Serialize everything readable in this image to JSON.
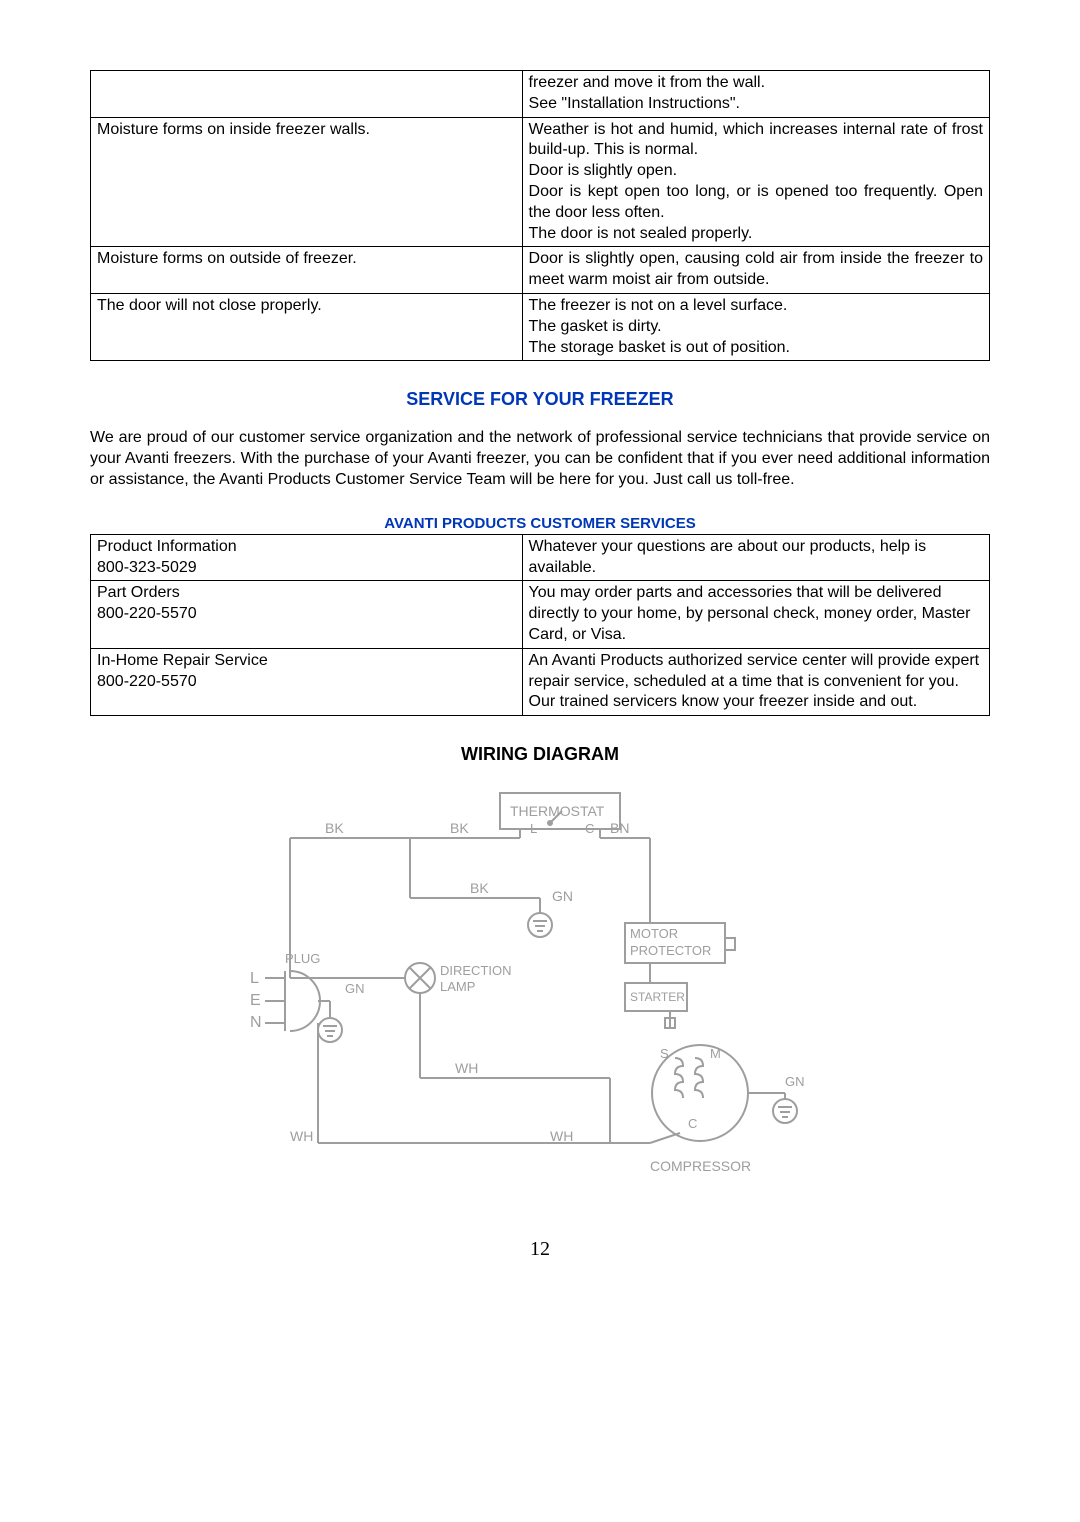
{
  "troubleshoot_table": {
    "rows": [
      {
        "issue": "",
        "cause": "freezer and move it from the wall.\nSee \"Installation Instructions\"."
      },
      {
        "issue": "Moisture forms on inside freezer walls.",
        "cause": "Weather is hot and humid, which increases internal rate of frost build-up.  This is normal.\nDoor is slightly open.\nDoor is kept open too long, or is opened too frequently.  Open the door less often.\nThe door is not sealed properly."
      },
      {
        "issue": "Moisture forms on outside of freezer.",
        "cause": "Door is slightly open, causing cold air from inside the freezer to meet warm moist air from outside."
      },
      {
        "issue": "The door will not close properly.",
        "cause": "The freezer is not on a level surface.\nThe gasket is dirty.\nThe storage basket is out of position."
      }
    ]
  },
  "service_heading": "SERVICE FOR YOUR FREEZER",
  "service_paragraph": "We are proud of our customer service organization and the network of professional service technicians that provide service on your Avanti freezers. With the purchase of your Avanti freezer, you can be confident that if you ever need additional information or assistance, the Avanti Products Customer Service Team will be here for you. Just call us toll-free.",
  "customer_services_heading": "AVANTI PRODUCTS CUSTOMER SERVICES",
  "services_table": {
    "rows": [
      {
        "left": "Product Information\n800-323-5029",
        "right": "Whatever your questions are about our products, help is available."
      },
      {
        "left": "Part Orders\n800-220-5570",
        "right": "You may order parts and accessories that will be delivered directly to your home, by personal check, money order, Master Card, or Visa."
      },
      {
        "left": "In-Home Repair Service\n800-220-5570",
        "right": "An Avanti Products authorized service center will provide expert repair service, scheduled at a time that is convenient for you. Our trained servicers know your freezer inside and out."
      }
    ]
  },
  "wiring_heading": "WIRING DIAGRAM",
  "diagram": {
    "thermostat": "THERMOSTAT",
    "bk": "BK",
    "l": "L",
    "c": "C",
    "bn": "BN",
    "gn": "GN",
    "motor": "MOTOR",
    "protector": "PROTECTOR",
    "plug": "PLUG",
    "l2": "L",
    "e": "E",
    "n": "N",
    "direction": "DIRECTION",
    "lamp": "LAMP",
    "starter": "STARTER",
    "s": "S",
    "m": "M",
    "c2": "C",
    "wh": "WH",
    "compressor": "COMPRESSOR"
  },
  "page_number": "12",
  "colors": {
    "blue_heading": "#0037b6",
    "text": "#000000",
    "diagram_stroke": "#9e9e9e",
    "background": "#ffffff"
  }
}
